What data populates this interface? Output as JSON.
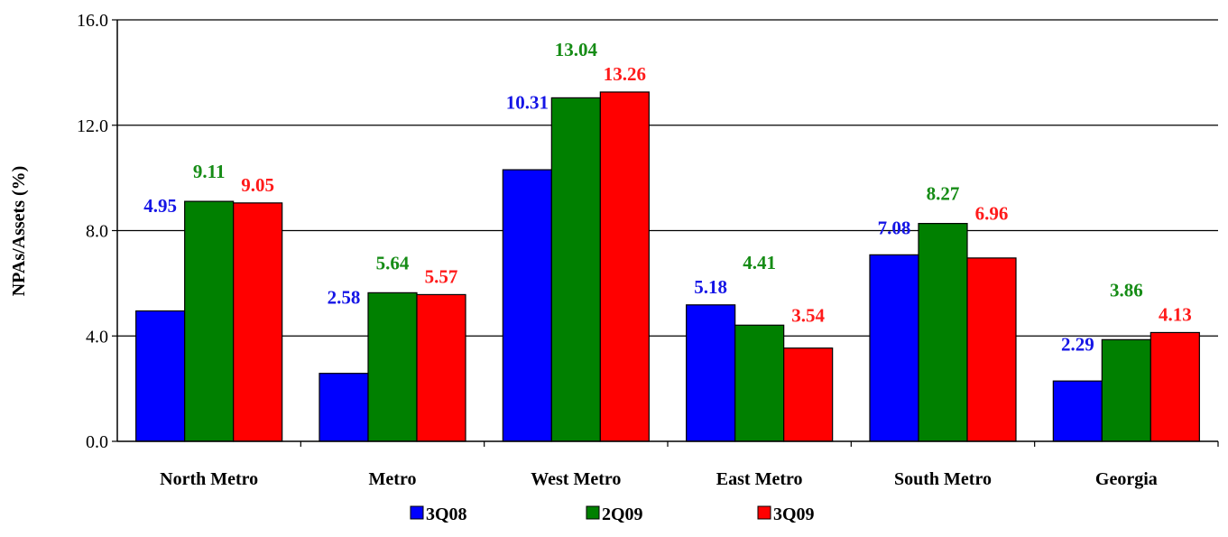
{
  "chart_data": {
    "type": "bar",
    "ylabel": "NPAs/Assets (%)",
    "xlabel": "",
    "ylim": [
      0,
      16
    ],
    "yticks": [
      "0.0",
      "4.0",
      "8.0",
      "12.0",
      "16.0"
    ],
    "categories": [
      "North Metro",
      "Metro",
      "West Metro",
      "East Metro",
      "South Metro",
      "Georgia"
    ],
    "series": [
      {
        "name": "3Q08",
        "color": "#0000FF",
        "values": [
          4.95,
          2.58,
          10.31,
          5.18,
          7.08,
          2.29
        ]
      },
      {
        "name": "2Q09",
        "color": "#008000",
        "values": [
          9.11,
          5.64,
          13.04,
          4.41,
          8.27,
          3.86
        ]
      },
      {
        "name": "3Q09",
        "color": "#FF0000",
        "values": [
          9.05,
          5.57,
          13.26,
          3.54,
          6.96,
          4.13
        ]
      }
    ],
    "data_label_colors": [
      "#1515E6",
      "#168C16",
      "#FF1A1A"
    ],
    "grid": true,
    "legend": "bottom"
  }
}
